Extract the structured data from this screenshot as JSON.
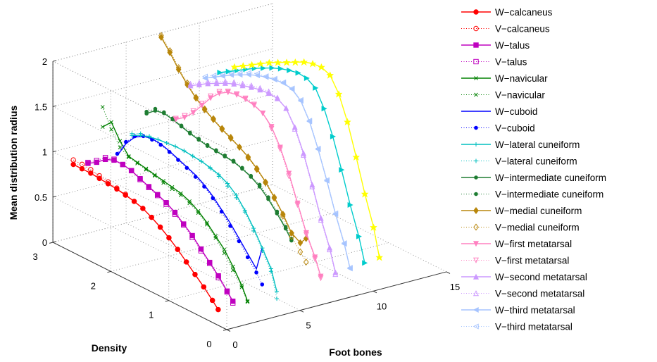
{
  "chart_data": {
    "type": "line",
    "projection": "3d",
    "xlabel": "Foot bones",
    "ylabel": "Density",
    "zlabel": "Mean distribution radius",
    "xlim": [
      0,
      15
    ],
    "ylim": [
      0,
      3
    ],
    "zlim": [
      0,
      2
    ],
    "xticks": [
      "0",
      "5",
      "10",
      "15"
    ],
    "yticks": [
      "0",
      "1",
      "2",
      "3"
    ],
    "zticks": [
      "0",
      "0.5",
      "1",
      "1.5",
      "2"
    ],
    "grid": true,
    "legend_position": "right",
    "colors": {
      "calcaneus": "#ff0000",
      "talus": "#bf00bf",
      "navicular": "#008000",
      "cuboid": "#0000ff",
      "lateral_cuneiform": "#00bfbf",
      "intermediate_cuneiform": "#1e7d32",
      "medial_cuneiform": "#b8860b",
      "first_metatarsal": "#ff80c0",
      "second_metatarsal": "#cc99ff",
      "third_metatarsal": "#a6c4ff",
      "yellow_series": "#ffff00"
    },
    "legend": [
      "W−calcaneus",
      "V−calcaneus",
      "W−talus",
      "V−talus",
      "W−navicular",
      "V−navicular",
      "W−cuboid",
      "V−cuboid",
      "W−lateral cuneiform",
      "V−lateral cuneiform",
      "W−intermediate cuneiform",
      "V−intermediate cuneiform",
      "W−medial cuneiform",
      "V−medial cuneiform",
      "W−first metatarsal",
      "V−first metatarsal",
      "W−second metatarsal",
      "V−second metatarsal",
      "W−third metatarsal",
      "V−third metatarsal"
    ],
    "series": [
      {
        "name": "W−calcaneus",
        "color": "#ff0000",
        "style": "solid",
        "marker": "circle",
        "bone": 1,
        "density": [
          2.9,
          2.75,
          2.6,
          2.45,
          2.3,
          2.15,
          2.0,
          1.85,
          1.7,
          1.55,
          1.4,
          1.25,
          1.1,
          0.95,
          0.8,
          0.65,
          0.5,
          0.4
        ],
        "radius": [
          0.85,
          0.85,
          0.85,
          0.84,
          0.83,
          0.82,
          0.8,
          0.78,
          0.75,
          0.7,
          0.64,
          0.57,
          0.49,
          0.4,
          0.31,
          0.22,
          0.12,
          0.05
        ]
      },
      {
        "name": "V−calcaneus",
        "color": "#ff0000",
        "style": "dotted",
        "marker": "circle-open",
        "bone": 1,
        "density": [
          2.9,
          2.75,
          2.6,
          2.45,
          2.3,
          2.15,
          2.0,
          1.85,
          1.7,
          1.55,
          1.4,
          1.25,
          1.1,
          0.95,
          0.8,
          0.65,
          0.5,
          0.4
        ],
        "radius": [
          0.9,
          0.9,
          0.89,
          0.87,
          0.85,
          0.83,
          0.81,
          0.78,
          0.75,
          0.7,
          0.64,
          0.57,
          0.49,
          0.4,
          0.31,
          0.22,
          0.12,
          0.05
        ]
      },
      {
        "name": "W−talus",
        "color": "#bf00bf",
        "style": "solid",
        "marker": "square",
        "bone": 2,
        "density": [
          2.9,
          2.75,
          2.6,
          2.45,
          2.3,
          2.15,
          2.0,
          1.85,
          1.7,
          1.55,
          1.4,
          1.25,
          1.1,
          0.95,
          0.8,
          0.65,
          0.5,
          0.4
        ],
        "radius": [
          0.82,
          0.88,
          0.96,
          1.0,
          1.0,
          0.98,
          0.94,
          0.9,
          0.86,
          0.82,
          0.76,
          0.68,
          0.6,
          0.5,
          0.4,
          0.3,
          0.18,
          0.1
        ]
      },
      {
        "name": "V−talus",
        "color": "#bf00bf",
        "style": "dotted",
        "marker": "square-open",
        "bone": 2,
        "density": [
          2.9,
          2.75,
          2.6,
          2.45,
          2.3,
          2.15,
          2.0,
          1.85,
          1.7,
          1.55,
          1.4,
          1.25,
          1.1,
          0.95,
          0.8,
          0.65,
          0.5,
          0.4
        ],
        "radius": [
          0.83,
          0.9,
          0.98,
          1.01,
          1.0,
          0.98,
          0.93,
          0.89,
          0.85,
          0.8,
          0.74,
          0.67,
          0.58,
          0.48,
          0.39,
          0.28,
          0.17,
          0.08
        ]
      },
      {
        "name": "W−navicular",
        "color": "#008000",
        "style": "solid",
        "marker": "x",
        "bone": 3,
        "density": [
          2.9,
          2.75,
          2.6,
          2.45,
          2.3,
          2.15,
          2.0,
          1.85,
          1.7,
          1.55,
          1.4,
          1.25,
          1.1,
          0.95,
          0.8,
          0.65,
          0.5,
          0.4
        ],
        "radius": [
          1.18,
          1.28,
          1.12,
          1.0,
          0.98,
          0.96,
          0.94,
          0.92,
          0.9,
          0.88,
          0.84,
          0.78,
          0.7,
          0.6,
          0.5,
          0.36,
          0.2,
          0.06
        ]
      },
      {
        "name": "V−navicular",
        "color": "#008000",
        "style": "dotted",
        "marker": "x",
        "bone": 3,
        "density": [
          2.9,
          2.75,
          2.6,
          2.45,
          2.3,
          2.15,
          2.0,
          1.85,
          1.7,
          1.55,
          1.4,
          1.25,
          1.1,
          0.95,
          0.8,
          0.65,
          0.5,
          0.4
        ],
        "radius": [
          1.4,
          1.2,
          1.05,
          0.99,
          0.97,
          0.95,
          0.93,
          0.9,
          0.88,
          0.86,
          0.82,
          0.76,
          0.68,
          0.58,
          0.46,
          0.32,
          0.18,
          0.05
        ]
      },
      {
        "name": "W−cuboid",
        "color": "#0000ff",
        "style": "solid",
        "marker": "none",
        "bone": 4,
        "density": [
          2.9,
          2.75,
          2.6,
          2.45,
          2.3,
          2.15,
          2.0,
          1.85,
          1.7,
          1.55,
          1.4,
          1.25,
          1.1,
          0.95,
          0.8,
          0.65,
          0.5,
          0.4
        ],
        "radius": [
          0.82,
          1.0,
          1.12,
          1.18,
          1.2,
          1.19,
          1.16,
          1.12,
          1.08,
          1.04,
          0.98,
          0.9,
          0.8,
          0.7,
          0.58,
          0.46,
          0.34,
          0.6
        ]
      },
      {
        "name": "V−cuboid",
        "color": "#0000ff",
        "style": "dotted",
        "marker": "dot",
        "bone": 4,
        "density": [
          2.9,
          2.75,
          2.6,
          2.45,
          2.3,
          2.15,
          2.0,
          1.85,
          1.7,
          1.55,
          1.4,
          1.25,
          1.1,
          0.95,
          0.8,
          0.65,
          0.5,
          0.4
        ],
        "radius": [
          0.84,
          1.02,
          1.13,
          1.18,
          1.19,
          1.18,
          1.15,
          1.11,
          1.07,
          1.02,
          0.96,
          0.88,
          0.78,
          0.67,
          0.55,
          0.42,
          0.3,
          0.2
        ]
      },
      {
        "name": "W−lateral cuneiform",
        "color": "#00bfbf",
        "style": "solid",
        "marker": "plus",
        "bone": 5,
        "density": [
          2.9,
          2.75,
          2.6,
          2.45,
          2.3,
          2.15,
          2.0,
          1.85,
          1.7,
          1.55,
          1.4,
          1.25,
          1.1,
          0.95,
          0.8,
          0.65,
          0.5,
          0.4
        ],
        "radius": [
          1.0,
          1.05,
          1.08,
          1.1,
          1.11,
          1.12,
          1.12,
          1.11,
          1.1,
          1.08,
          1.05,
          1.0,
          0.92,
          0.8,
          0.65,
          0.48,
          0.3,
          0.08
        ]
      },
      {
        "name": "V−lateral cuneiform",
        "color": "#00bfbf",
        "style": "dotted",
        "marker": "plus",
        "bone": 5,
        "density": [
          2.9,
          2.75,
          2.6,
          2.45,
          2.3,
          2.15,
          2.0,
          1.85,
          1.7,
          1.55,
          1.4,
          1.25,
          1.1,
          0.95,
          0.8,
          0.65,
          0.5,
          0.4
        ],
        "radius": [
          1.02,
          1.07,
          1.09,
          1.1,
          1.11,
          1.12,
          1.12,
          1.11,
          1.1,
          1.07,
          1.03,
          0.97,
          0.89,
          0.78,
          0.62,
          0.45,
          0.27,
          0.0
        ]
      },
      {
        "name": "W−intermediate cuneiform",
        "color": "#1e7d32",
        "style": "solid",
        "marker": "dot",
        "bone": 6,
        "density": [
          2.9,
          2.75,
          2.6,
          2.45,
          2.3,
          2.15,
          2.0,
          1.85,
          1.7,
          1.55,
          1.4,
          1.25,
          1.1,
          0.95,
          0.8,
          0.65,
          0.5,
          0.4
        ],
        "radius": [
          1.2,
          1.28,
          1.3,
          1.28,
          1.25,
          1.22,
          1.2,
          1.18,
          1.17,
          1.16,
          1.15,
          1.12,
          1.08,
          1.02,
          0.93,
          0.82,
          0.7,
          0.6
        ]
      },
      {
        "name": "V−intermediate cuneiform",
        "color": "#1e7d32",
        "style": "dotted",
        "marker": "dot",
        "bone": 6,
        "density": [
          2.9,
          2.75,
          2.6,
          2.45,
          2.3,
          2.15,
          2.0,
          1.85,
          1.7,
          1.55,
          1.4,
          1.25,
          1.1,
          0.95,
          0.8,
          0.65,
          0.5,
          0.4
        ],
        "radius": [
          1.22,
          1.3,
          1.31,
          1.29,
          1.26,
          1.23,
          1.21,
          1.19,
          1.18,
          1.17,
          1.16,
          1.13,
          1.09,
          1.04,
          0.95,
          0.84,
          0.72,
          0.62
        ]
      },
      {
        "name": "W−medial cuneiform",
        "color": "#b8860b",
        "style": "solid",
        "marker": "diamond",
        "bone": 7,
        "density": [
          2.9,
          2.75,
          2.6,
          2.45,
          2.3,
          2.15,
          2.0,
          1.85,
          1.7,
          1.55,
          1.4,
          1.25,
          1.1,
          0.95,
          0.8,
          0.65,
          0.5,
          0.4
        ],
        "radius": [
          2.0,
          1.88,
          1.74,
          1.62,
          1.52,
          1.44,
          1.38,
          1.32,
          1.27,
          1.22,
          1.16,
          1.08,
          0.98,
          0.86,
          0.72,
          0.56,
          0.5,
          0.58
        ]
      },
      {
        "name": "V−medial cuneiform",
        "color": "#b8860b",
        "style": "dotted",
        "marker": "diamond-open",
        "bone": 7,
        "density": [
          2.9,
          2.75,
          2.6,
          2.45,
          2.3,
          2.15,
          2.0,
          1.85,
          1.7,
          1.55,
          1.4,
          1.25,
          1.1,
          0.95,
          0.8,
          0.65,
          0.5,
          0.4
        ],
        "radius": [
          2.02,
          1.9,
          1.76,
          1.64,
          1.53,
          1.45,
          1.39,
          1.33,
          1.28,
          1.22,
          1.15,
          1.07,
          0.97,
          0.85,
          0.7,
          0.52,
          0.4,
          0.32
        ]
      },
      {
        "name": "W−first metatarsal",
        "color": "#ff80c0",
        "style": "solid",
        "marker": "triangle-down",
        "bone": 8,
        "density": [
          2.9,
          2.75,
          2.6,
          2.45,
          2.3,
          2.15,
          2.0,
          1.85,
          1.7,
          1.55,
          1.4,
          1.25,
          1.1,
          0.95,
          0.8,
          0.65,
          0.5,
          0.4
        ],
        "radius": [
          1.05,
          1.12,
          1.22,
          1.35,
          1.48,
          1.58,
          1.64,
          1.66,
          1.66,
          1.64,
          1.6,
          1.5,
          1.32,
          1.08,
          0.8,
          0.52,
          0.3,
          0.12
        ]
      },
      {
        "name": "V−first metatarsal",
        "color": "#ff80c0",
        "style": "dotted",
        "marker": "triangle-down-open",
        "bone": 8,
        "density": [
          2.9,
          2.75,
          2.6,
          2.45,
          2.3,
          2.15,
          2.0,
          1.85,
          1.7,
          1.55,
          1.4,
          1.25,
          1.1,
          0.95,
          0.8,
          0.65,
          0.5,
          0.4
        ],
        "radius": [
          1.06,
          1.14,
          1.24,
          1.37,
          1.5,
          1.6,
          1.65,
          1.67,
          1.67,
          1.65,
          1.6,
          1.48,
          1.3,
          1.05,
          0.78,
          0.5,
          0.28,
          0.1
        ]
      },
      {
        "name": "W−second metatarsal",
        "color": "#cc99ff",
        "style": "solid",
        "marker": "triangle-up",
        "bone": 9,
        "density": [
          2.9,
          2.75,
          2.6,
          2.45,
          2.3,
          2.15,
          2.0,
          1.85,
          1.7,
          1.55,
          1.4,
          1.25,
          1.1,
          0.95,
          0.8,
          0.65,
          0.5,
          0.4
        ],
        "radius": [
          1.38,
          1.44,
          1.5,
          1.55,
          1.6,
          1.64,
          1.67,
          1.7,
          1.72,
          1.73,
          1.72,
          1.66,
          1.5,
          1.26,
          0.96,
          0.64,
          0.36,
          0.12
        ]
      },
      {
        "name": "V−second metatarsal",
        "color": "#cc99ff",
        "style": "dotted",
        "marker": "triangle-up-open",
        "bone": 9,
        "density": [
          2.9,
          2.75,
          2.6,
          2.45,
          2.3,
          2.15,
          2.0,
          1.85,
          1.7,
          1.55,
          1.4,
          1.25,
          1.1,
          0.95,
          0.8,
          0.65,
          0.5,
          0.4
        ],
        "radius": [
          1.4,
          1.46,
          1.52,
          1.57,
          1.62,
          1.66,
          1.69,
          1.72,
          1.74,
          1.75,
          1.73,
          1.66,
          1.48,
          1.24,
          0.94,
          0.62,
          0.34,
          0.1
        ]
      },
      {
        "name": "W−third metatarsal",
        "color": "#a6c4ff",
        "style": "solid",
        "marker": "triangle-left",
        "bone": 10,
        "density": [
          2.9,
          2.75,
          2.6,
          2.45,
          2.3,
          2.15,
          2.0,
          1.85,
          1.7,
          1.55,
          1.4,
          1.25,
          1.1,
          0.95,
          0.8,
          0.65,
          0.5,
          0.4
        ],
        "radius": [
          1.42,
          1.48,
          1.54,
          1.6,
          1.65,
          1.7,
          1.74,
          1.77,
          1.79,
          1.8,
          1.78,
          1.7,
          1.52,
          1.26,
          0.96,
          0.64,
          0.36,
          0.12
        ]
      },
      {
        "name": "V−third metatarsal",
        "color": "#a6c4ff",
        "style": "dotted",
        "marker": "triangle-left-open",
        "bone": 10,
        "density": [
          2.9,
          2.75,
          2.6,
          2.45,
          2.3,
          2.15,
          2.0,
          1.85,
          1.7,
          1.55,
          1.4,
          1.25,
          1.1,
          0.95,
          0.8,
          0.65,
          0.5,
          0.4
        ],
        "radius": [
          1.44,
          1.5,
          1.56,
          1.62,
          1.67,
          1.72,
          1.76,
          1.78,
          1.8,
          1.81,
          1.79,
          1.71,
          1.53,
          1.27,
          0.97,
          0.65,
          0.37,
          0.13
        ]
      },
      {
        "name": "",
        "color": "#00cccc",
        "style": "solid",
        "marker": "triangle-right",
        "bone": 11,
        "density": [
          2.9,
          2.75,
          2.6,
          2.45,
          2.3,
          2.15,
          2.0,
          1.85,
          1.7,
          1.55,
          1.4,
          1.25,
          1.1,
          0.95,
          0.8,
          0.65,
          0.5,
          0.4
        ],
        "radius": [
          1.44,
          1.5,
          1.56,
          1.62,
          1.68,
          1.73,
          1.78,
          1.82,
          1.85,
          1.87,
          1.86,
          1.8,
          1.62,
          1.36,
          1.04,
          0.7,
          0.4,
          0.14
        ]
      },
      {
        "name": "",
        "color": "#ffff00",
        "style": "solid",
        "marker": "star",
        "bone": 12,
        "density": [
          2.9,
          2.75,
          2.6,
          2.45,
          2.3,
          2.15,
          2.0,
          1.85,
          1.7,
          1.55,
          1.4,
          1.25,
          1.1,
          0.95,
          0.8,
          0.65,
          0.5,
          0.4
        ],
        "radius": [
          1.46,
          1.52,
          1.58,
          1.64,
          1.7,
          1.75,
          1.8,
          1.85,
          1.9,
          1.93,
          1.94,
          1.9,
          1.74,
          1.48,
          1.14,
          0.78,
          0.46,
          0.16
        ]
      }
    ]
  }
}
